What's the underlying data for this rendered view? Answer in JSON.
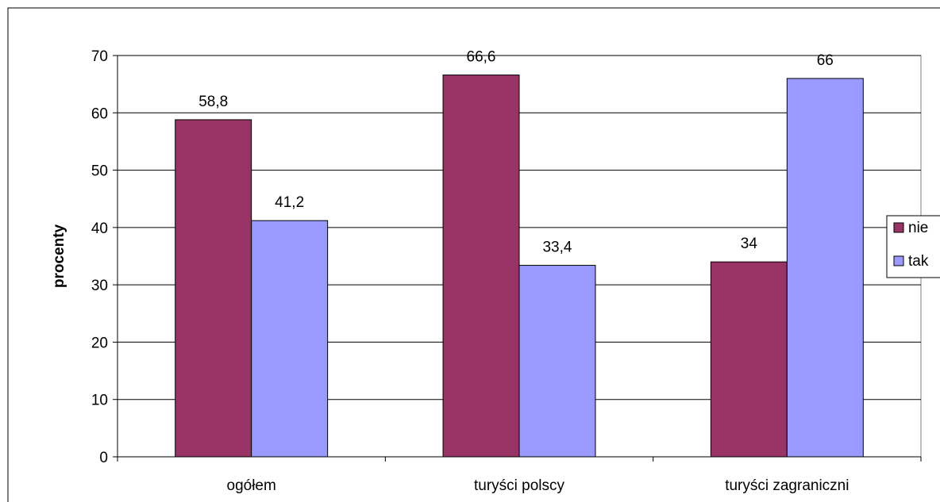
{
  "chart_data": {
    "type": "bar",
    "title": "",
    "xlabel": "",
    "ylabel": "procenty",
    "ylim": [
      0,
      70
    ],
    "yticks": [
      "0",
      "10",
      "20",
      "30",
      "40",
      "50",
      "60",
      "70"
    ],
    "grid": true,
    "legend_position": "right",
    "categories": [
      "ogółem",
      "turyści polscy",
      "turyści zagraniczni"
    ],
    "series": [
      {
        "name": "nie",
        "values": [
          58.8,
          66.6,
          34
        ],
        "labels": [
          "58,8",
          "66,6",
          "34"
        ],
        "color": "#993366"
      },
      {
        "name": "tak",
        "values": [
          41.2,
          33.4,
          66
        ],
        "labels": [
          "41,2",
          "33,4",
          "66"
        ],
        "color": "#9999ff"
      }
    ]
  }
}
